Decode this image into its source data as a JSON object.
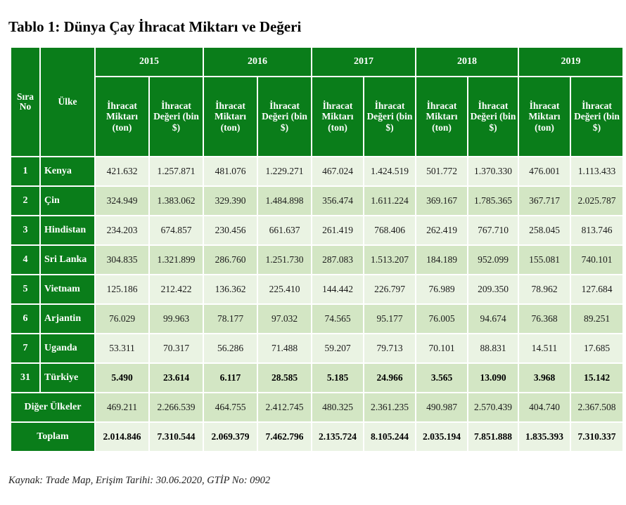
{
  "page": {
    "title": "Tablo 1: Dünya Çay İhracat Miktarı ve Değeri",
    "source": "Kaynak: Trade Map, Erişim Tarihi: 30.06.2020, GTİP No: 0902"
  },
  "table": {
    "col_sira": "Sıra No",
    "col_ulke": "Ülke",
    "years": [
      "2015",
      "2016",
      "2017",
      "2018",
      "2019"
    ],
    "sub_miktar": "İhracat Miktarı (ton)",
    "sub_deger": "İhracat Değeri (bin $)",
    "rows": [
      {
        "rank": "1",
        "country": "Kenya",
        "values": [
          "421.632",
          "1.257.871",
          "481.076",
          "1.229.271",
          "467.024",
          "1.424.519",
          "501.772",
          "1.370.330",
          "476.001",
          "1.113.433"
        ]
      },
      {
        "rank": "2",
        "country": "Çin",
        "values": [
          "324.949",
          "1.383.062",
          "329.390",
          "1.484.898",
          "356.474",
          "1.611.224",
          "369.167",
          "1.785.365",
          "367.717",
          "2.025.787"
        ]
      },
      {
        "rank": "3",
        "country": "Hindistan",
        "values": [
          "234.203",
          "674.857",
          "230.456",
          "661.637",
          "261.419",
          "768.406",
          "262.419",
          "767.710",
          "258.045",
          "813.746"
        ]
      },
      {
        "rank": "4",
        "country": "Sri Lanka",
        "values": [
          "304.835",
          "1.321.899",
          "286.760",
          "1.251.730",
          "287.083",
          "1.513.207",
          "184.189",
          "952.099",
          "155.081",
          "740.101"
        ]
      },
      {
        "rank": "5",
        "country": "Vietnam",
        "values": [
          "125.186",
          "212.422",
          "136.362",
          "225.410",
          "144.442",
          "226.797",
          "76.989",
          "209.350",
          "78.962",
          "127.684"
        ]
      },
      {
        "rank": "6",
        "country": "Arjantin",
        "values": [
          "76.029",
          "99.963",
          "78.177",
          "97.032",
          "74.565",
          "95.177",
          "76.005",
          "94.674",
          "76.368",
          "89.251"
        ]
      },
      {
        "rank": "7",
        "country": "Uganda",
        "values": [
          "53.311",
          "70.317",
          "56.286",
          "71.488",
          "59.207",
          "79.713",
          "70.101",
          "88.831",
          "14.511",
          "17.685"
        ]
      },
      {
        "rank": "31",
        "country": "Türkiye",
        "values": [
          "5.490",
          "23.614",
          "6.117",
          "28.585",
          "5.185",
          "24.966",
          "3.565",
          "13.090",
          "3.968",
          "15.142"
        ]
      }
    ],
    "other": {
      "label": "Diğer Ülkeler",
      "values": [
        "469.211",
        "2.266.539",
        "464.755",
        "2.412.745",
        "480.325",
        "2.361.235",
        "490.987",
        "2.570.439",
        "404.740",
        "2.367.508"
      ]
    },
    "total": {
      "label": "Toplam",
      "values": [
        "2.014.846",
        "7.310.544",
        "2.069.379",
        "7.462.796",
        "2.135.724",
        "8.105.244",
        "2.035.194",
        "7.851.888",
        "1.835.393",
        "7.310.337"
      ]
    }
  }
}
